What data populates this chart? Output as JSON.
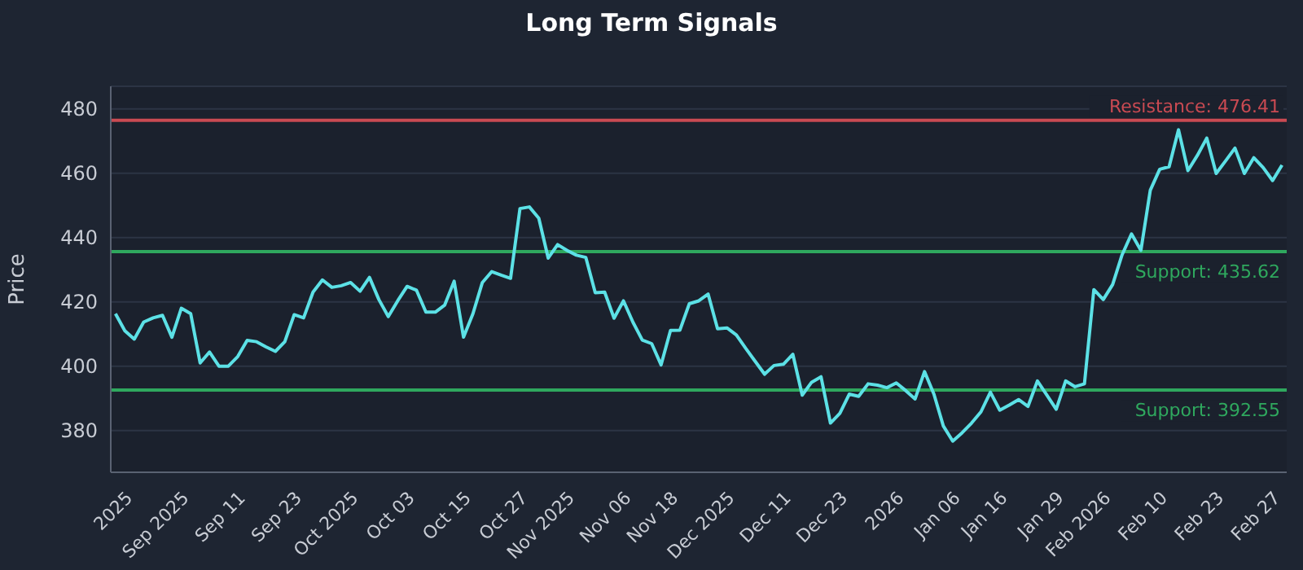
{
  "chart_data": {
    "type": "line",
    "title": "Long Term Signals",
    "ylabel": "Price",
    "categories": [
      null,
      null,
      "2025",
      null,
      null,
      null,
      null,
      null,
      "Sep 2025",
      null,
      null,
      null,
      null,
      null,
      "Sep 11",
      null,
      null,
      null,
      null,
      null,
      "Sep 23",
      null,
      null,
      null,
      null,
      null,
      "Oct 2025",
      null,
      null,
      null,
      null,
      null,
      "Oct 03",
      null,
      null,
      null,
      null,
      null,
      "Oct 15",
      null,
      null,
      null,
      null,
      null,
      "Oct 27",
      null,
      null,
      null,
      null,
      "Nov 2025",
      null,
      null,
      null,
      null,
      null,
      "Nov 06",
      null,
      null,
      null,
      null,
      "Nov 18",
      null,
      null,
      null,
      null,
      null,
      "Dec 2025",
      null,
      null,
      null,
      null,
      null,
      "Dec 11",
      null,
      null,
      null,
      null,
      null,
      "Dec 23",
      null,
      null,
      null,
      null,
      null,
      "2026",
      null,
      null,
      null,
      null,
      null,
      "Jan 06",
      null,
      null,
      null,
      null,
      "Jan 16",
      null,
      null,
      null,
      null,
      null,
      "Jan 29",
      null,
      null,
      null,
      null,
      "Feb 2026",
      null,
      null,
      null,
      null,
      null,
      "Feb 10",
      null,
      null,
      null,
      null,
      null,
      "Feb 23",
      null,
      null,
      null,
      null,
      null,
      "Feb 27"
    ],
    "series": [
      {
        "color": "#5ce1e6",
        "values": [
          416.3,
          411,
          408.4,
          413.7,
          415,
          415.8,
          409,
          418,
          416.3,
          401,
          404.4,
          400,
          400,
          403,
          408,
          407.6,
          406,
          404.6,
          407.6,
          416,
          415,
          423,
          426.8,
          424.5,
          425,
          426,
          423.3,
          427.6,
          420.7,
          415.4,
          420.3,
          424.8,
          423.6,
          416.8,
          416.8,
          419,
          426.4,
          409,
          416.3,
          426,
          429.4,
          428.3,
          427.3,
          449,
          449.5,
          446,
          433.6,
          437.8,
          436,
          434.5,
          433.8,
          422.8,
          423,
          414.9,
          420.3,
          413.7,
          408.1,
          407,
          400.4,
          411.1,
          411.2,
          419.4,
          420.3,
          422.4,
          411.6,
          411.9,
          409.7,
          405.5,
          401.5,
          397.5,
          400.2,
          400.6,
          403.7,
          391,
          395,
          396.7,
          382.3,
          385.3,
          391.3,
          390.6,
          394.5,
          394.1,
          393.3,
          394.8,
          392.4,
          389.8,
          398.3,
          391.3,
          381.4,
          376.7,
          379.3,
          382.3,
          385.8,
          391.9,
          386.3,
          387.9,
          389.6,
          387.5,
          395.4,
          391,
          386.6,
          395.4,
          393.6,
          394.5,
          423.8,
          420.7,
          425.4,
          434.6,
          441.1,
          436,
          454.7,
          461.2,
          462,
          473.5,
          460.8,
          465.5,
          470.9,
          459.9,
          463.8,
          467.8,
          459.9,
          464.8,
          461.7,
          457.7,
          462.5
        ]
      }
    ],
    "ylim": [
      367,
      487
    ],
    "yticks": [
      380,
      400,
      420,
      440,
      460,
      480
    ],
    "grid": "y",
    "ref_lines": [
      {
        "axis": "y",
        "value": 476.41,
        "label": "Resistance: 476.41",
        "color": "#c94a52"
      },
      {
        "axis": "y",
        "value": 435.62,
        "label": "Support: 435.62",
        "color": "#2fa85e"
      },
      {
        "axis": "y",
        "value": 392.55,
        "label": "Support: 392.55",
        "color": "#2fa85e"
      }
    ]
  }
}
